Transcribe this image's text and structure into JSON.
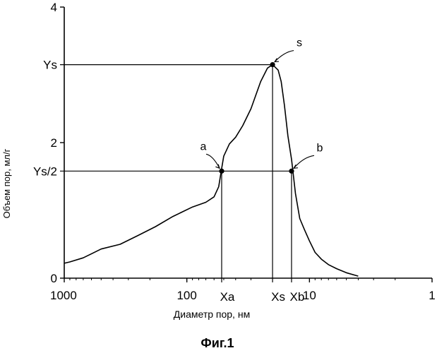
{
  "chart_data": {
    "type": "line",
    "title": "",
    "caption": "Фиг.1",
    "xlabel": "Диаметр пор, нм",
    "ylabel": "Объем пор, мл/г",
    "x_scale": "log",
    "x_reversed": true,
    "xlim": [
      1000,
      1
    ],
    "ylim": [
      0,
      4
    ],
    "x_ticks": [
      {
        "value": 1000,
        "label": "1000"
      },
      {
        "value": 100,
        "label": "100"
      },
      {
        "value": 10,
        "label": "10"
      },
      {
        "value": 1,
        "label": "1"
      }
    ],
    "y_ticks": [
      {
        "value": 0,
        "label": "0"
      },
      {
        "value": 2,
        "label": "2"
      },
      {
        "value": 4,
        "label": "4"
      }
    ],
    "grid": false,
    "series": [
      {
        "x": [
          1000,
          900,
          700,
          500,
          350,
          250,
          180,
          130,
          90,
          70,
          60,
          55,
          52,
          50,
          45,
          40,
          35,
          30,
          25,
          22,
          20,
          18,
          17,
          16,
          15,
          14,
          13,
          12,
          11,
          10,
          9,
          8,
          7,
          6,
          5,
          4
        ],
        "y": [
          0.22,
          0.24,
          0.3,
          0.43,
          0.5,
          0.63,
          0.76,
          0.91,
          1.05,
          1.12,
          1.2,
          1.35,
          1.62,
          1.8,
          1.98,
          2.08,
          2.25,
          2.5,
          2.9,
          3.1,
          3.15,
          3.07,
          2.9,
          2.55,
          2.1,
          1.75,
          1.25,
          0.88,
          0.72,
          0.55,
          0.38,
          0.28,
          0.2,
          0.14,
          0.08,
          0.03
        ]
      }
    ],
    "points": [
      {
        "name": "a",
        "x": 52,
        "y": 1.58
      },
      {
        "name": "s",
        "x": 20,
        "y": 3.15
      },
      {
        "name": "b",
        "x": 14,
        "y": 1.58
      }
    ],
    "reference_lines": {
      "y": [
        {
          "label": "Ys",
          "value": 3.15
        },
        {
          "label": "Ys/2",
          "value": 1.58
        }
      ],
      "x": [
        {
          "label": "Xa",
          "value": 52
        },
        {
          "label": "Xs",
          "value": 20
        },
        {
          "label": "Xb",
          "value": 14
        }
      ]
    }
  }
}
